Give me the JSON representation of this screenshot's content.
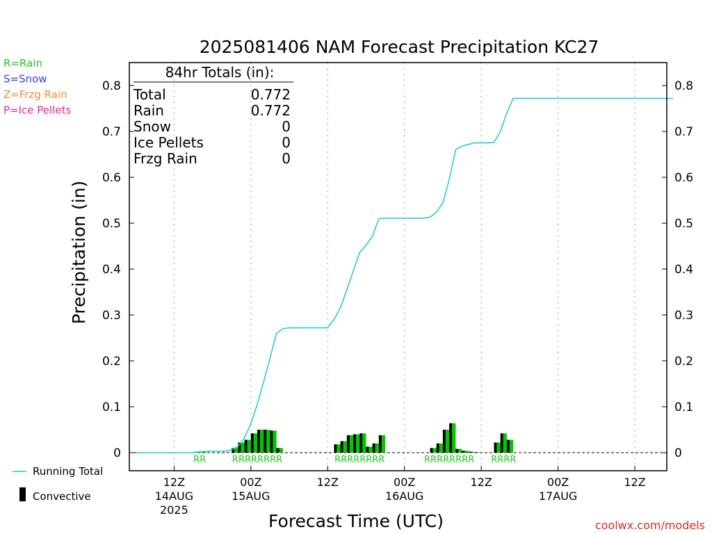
{
  "chart_data": {
    "type": "line",
    "title": "2025081406 NAM Forecast Precipitation KC27",
    "ylabel": "Precipitation (in)",
    "xlabel": "Forecast Time (UTC)",
    "ylim": [
      -0.04,
      0.86
    ],
    "yticks": [
      0,
      0.1,
      0.2,
      0.3,
      0.4,
      0.5,
      0.6,
      0.7,
      0.8
    ],
    "ytick_labels": [
      "0",
      "0.1",
      "0.2",
      "0.3",
      "0.4",
      "0.5",
      "0.6",
      "0.7",
      "0.8"
    ],
    "x_units": "hours since 2025-08-14 06Z",
    "xlim": [
      -1,
      83
    ],
    "grid": "vertical dotted at 12-hour intervals",
    "xticks": [
      {
        "hour": 6,
        "lines": [
          "12Z",
          "14AUG",
          "2025"
        ]
      },
      {
        "hour": 18,
        "lines": [
          "00Z",
          "15AUG"
        ]
      },
      {
        "hour": 30,
        "lines": [
          "12Z"
        ]
      },
      {
        "hour": 42,
        "lines": [
          "00Z",
          "16AUG"
        ]
      },
      {
        "hour": 54,
        "lines": [
          "12Z"
        ]
      },
      {
        "hour": 66,
        "lines": [
          "00Z",
          "17AUG"
        ]
      },
      {
        "hour": 78,
        "lines": [
          "12Z"
        ]
      }
    ],
    "running_total": {
      "name": "Running Total",
      "color": "#1ec8c8",
      "x": [
        0,
        9,
        10,
        11,
        12,
        13,
        14,
        15,
        16,
        17,
        18,
        19,
        20,
        21,
        22,
        23,
        24,
        25,
        26,
        27,
        28,
        29,
        30,
        31,
        32,
        33,
        34,
        35,
        36,
        37,
        38,
        39,
        40,
        41,
        42,
        43,
        44,
        45,
        46,
        47,
        48,
        49,
        50,
        51,
        52,
        53,
        54,
        55,
        56,
        57,
        58,
        59,
        60,
        70,
        84
      ],
      "y": [
        0,
        0,
        0.002,
        0.003,
        0.003,
        0.003,
        0.003,
        0.006,
        0.014,
        0.032,
        0.063,
        0.105,
        0.155,
        0.207,
        0.26,
        0.27,
        0.272,
        0.272,
        0.272,
        0.272,
        0.272,
        0.272,
        0.272,
        0.29,
        0.316,
        0.355,
        0.396,
        0.436,
        0.452,
        0.472,
        0.51,
        0.511,
        0.511,
        0.511,
        0.511,
        0.511,
        0.511,
        0.511,
        0.513,
        0.524,
        0.544,
        0.595,
        0.66,
        0.668,
        0.672,
        0.675,
        0.675,
        0.675,
        0.676,
        0.7,
        0.74,
        0.772,
        0.772,
        0.772,
        0.772
      ]
    },
    "bars": {
      "name": "Convective",
      "x": [
        10,
        11,
        16,
        17,
        18,
        19,
        20,
        21,
        22,
        23,
        32,
        33,
        34,
        35,
        36,
        37,
        38,
        39,
        47,
        48,
        49,
        50,
        51,
        52,
        53,
        54,
        57,
        58,
        59
      ],
      "total": [
        0.002,
        0.002,
        0.01,
        0.022,
        0.028,
        0.042,
        0.05,
        0.05,
        0.048,
        0.01,
        0.018,
        0.025,
        0.038,
        0.04,
        0.042,
        0.013,
        0.02,
        0.038,
        0.01,
        0.02,
        0.05,
        0.064,
        0.008,
        0.004,
        0.002,
        0.001,
        0.022,
        0.042,
        0.028
      ],
      "convective": [
        0,
        0,
        0.006,
        0.012,
        0.014,
        0.022,
        0.03,
        0.03,
        0.024,
        0.006,
        0.01,
        0.014,
        0.02,
        0.022,
        0.022,
        0.007,
        0.011,
        0.02,
        0.006,
        0.011,
        0.028,
        0.036,
        0.004,
        0.002,
        0.001,
        0.001,
        0.012,
        0.024,
        0.016
      ],
      "total_color": "#00c800",
      "convective_color": "#000000"
    },
    "ptype_labels": [
      {
        "text": "RR",
        "x_center": 10.5
      },
      {
        "text": "RRRRRRRR",
        "x_center": 19.5
      },
      {
        "text": "RRRRRRRR",
        "x_center": 35.5
      },
      {
        "text": "RRRRRRRR",
        "x_center": 49.5
      },
      {
        "text": "RRRR",
        "x_center": 58
      }
    ],
    "totals_box": {
      "header": "84hr Totals (in):",
      "rows": [
        {
          "label": "Total",
          "value": "0.772"
        },
        {
          "label": "Rain",
          "value": "0.772"
        },
        {
          "label": "Snow",
          "value": "0"
        },
        {
          "label": "Ice Pellets",
          "value": "0"
        },
        {
          "label": "Frzg Rain",
          "value": "0"
        }
      ]
    },
    "type_legend": [
      {
        "text": "R=Rain",
        "color": "#22c822"
      },
      {
        "text": "S=Snow",
        "color": "#3c3cff"
      },
      {
        "text": "Z=Frzg Rain",
        "color": "#f08c3c"
      },
      {
        "text": "P=Ice Pellets",
        "color": "#e6288c"
      }
    ],
    "series_legend": [
      {
        "text": "Running Total",
        "kind": "line",
        "color": "#1ec8c8"
      },
      {
        "text": "Convective",
        "kind": "bar",
        "color": "#000000"
      }
    ],
    "credit": {
      "text": "coolwx.com/models",
      "color": "#dc2828"
    }
  }
}
